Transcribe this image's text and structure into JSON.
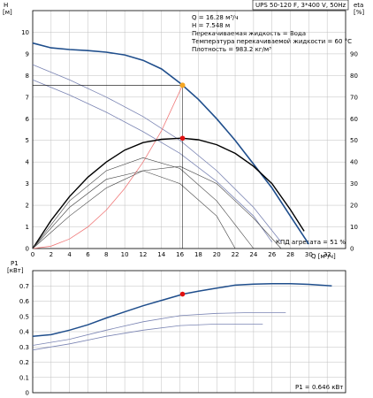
{
  "chart_data": [
    {
      "type": "line",
      "title": "UPS 50-120 F, 3*400 V, 50Hz",
      "ylabel": "H",
      "ylabel_unit": "[м]",
      "y2label": "eta",
      "y2label_unit": "[%]",
      "xlabel": "Q [м³/ч]",
      "xlim": [
        0,
        34
      ],
      "ylim": [
        0,
        11
      ],
      "y2lim": [
        0,
        110
      ],
      "grid": true,
      "x_ticks": [
        "0",
        "2",
        "4",
        "6",
        "8",
        "10",
        "12",
        "14",
        "16",
        "18",
        "20",
        "22",
        "24",
        "26",
        "28",
        "30",
        "32"
      ],
      "y_ticks": [
        "0",
        "1",
        "2",
        "3",
        "4",
        "5",
        "6",
        "7",
        "8",
        "9",
        "10"
      ],
      "y2_ticks": [
        "0",
        "10",
        "20",
        "30",
        "40",
        "50",
        "60",
        "70",
        "80",
        "90"
      ],
      "info_lines": [
        "Q = 16.28 м³/ч",
        "H = 7.548 м",
        "Перекачиваемая жидкость = Вода",
        "Температура перекачиваемой жидкости = 60 °C",
        "Плотность = 983.2 кг/м³"
      ],
      "efficiency_label": "КПД агрегата = 51 %",
      "colors": {
        "pump": "#1f4e8c",
        "speed": "#7a84b3",
        "system": "#f07a7a",
        "eff": "#000000",
        "marker_orange": "#f5a623",
        "marker_red": "#e01010"
      },
      "series": [
        {
          "role": "pump",
          "x": [
            0,
            2,
            4,
            6,
            8,
            10,
            12,
            14,
            16,
            16.28,
            18,
            20,
            22,
            24,
            26,
            28,
            30
          ],
          "y": [
            9.5,
            9.28,
            9.2,
            9.15,
            9.08,
            8.95,
            8.7,
            8.3,
            7.65,
            7.548,
            6.9,
            6.0,
            5.0,
            3.9,
            2.8,
            1.5,
            0.2
          ]
        },
        {
          "role": "speed",
          "x": [
            0,
            4,
            8,
            12,
            16,
            20,
            24,
            27
          ],
          "y": [
            8.5,
            7.8,
            7.0,
            6.1,
            5.0,
            3.6,
            1.9,
            0.3
          ]
        },
        {
          "role": "speed",
          "x": [
            0,
            4,
            8,
            12,
            16,
            20,
            24,
            26
          ],
          "y": [
            7.8,
            7.1,
            6.3,
            5.4,
            4.4,
            3.1,
            1.5,
            0.3
          ]
        },
        {
          "role": "system",
          "x": [
            0,
            2,
            4,
            6,
            8,
            10,
            12,
            14,
            16.28
          ],
          "y": [
            0,
            0.11,
            0.44,
            1.0,
            1.78,
            2.78,
            4.0,
            5.45,
            7.548
          ]
        },
        {
          "role": "eff",
          "x": [
            0,
            2,
            4,
            6,
            8,
            10,
            12,
            14,
            16,
            16.28,
            18,
            20,
            22,
            24,
            26,
            28,
            29.5
          ],
          "y": [
            0,
            13,
            24,
            33,
            40,
            45.5,
            49,
            50.5,
            51,
            51,
            50.3,
            48,
            44,
            38,
            30,
            18,
            8
          ]
        },
        {
          "role": "eff_speed",
          "x": [
            0,
            4,
            8,
            12,
            16,
            20,
            24
          ],
          "y": [
            0,
            22,
            36,
            42,
            37,
            22,
            0
          ]
        },
        {
          "role": "eff_speed",
          "x": [
            0,
            4,
            8,
            12,
            16,
            20,
            22
          ],
          "y": [
            0,
            19,
            32,
            36,
            30,
            15,
            0
          ]
        },
        {
          "role": "eff_speed",
          "x": [
            0,
            4,
            8,
            12,
            16,
            20,
            24,
            27
          ],
          "y": [
            0,
            15,
            28,
            36,
            38,
            30,
            14,
            0
          ]
        }
      ],
      "operating_point": {
        "x": 16.28,
        "h": 7.548,
        "eta": 51
      }
    },
    {
      "type": "line",
      "ylabel": "P1",
      "ylabel_unit": "[кВт]",
      "xlim": [
        0,
        34
      ],
      "ylim": [
        0,
        0.8
      ],
      "grid": true,
      "y_ticks": [
        "0",
        "0.1",
        "0.2",
        "0.3",
        "0.4",
        "0.5",
        "0.6",
        "0.7"
      ],
      "power_label": "P1 = 0.646 кВт",
      "series": [
        {
          "role": "pump",
          "x": [
            0,
            2,
            4,
            6,
            8,
            10,
            12,
            14,
            16,
            16.28,
            18,
            20,
            22,
            24,
            26,
            28,
            30,
            32.5
          ],
          "y": [
            0.37,
            0.38,
            0.41,
            0.445,
            0.49,
            0.53,
            0.57,
            0.605,
            0.64,
            0.646,
            0.665,
            0.685,
            0.705,
            0.712,
            0.715,
            0.714,
            0.71,
            0.7
          ]
        },
        {
          "role": "speed",
          "x": [
            0,
            4,
            8,
            12,
            16,
            20,
            24,
            27.5
          ],
          "y": [
            0.31,
            0.35,
            0.41,
            0.465,
            0.505,
            0.52,
            0.525,
            0.525
          ]
        },
        {
          "role": "speed",
          "x": [
            0,
            4,
            8,
            12,
            16,
            20,
            24,
            25
          ],
          "y": [
            0.28,
            0.32,
            0.37,
            0.41,
            0.44,
            0.45,
            0.45,
            0.45
          ]
        }
      ],
      "operating_point": {
        "x": 16.28,
        "p": 0.646
      }
    }
  ]
}
